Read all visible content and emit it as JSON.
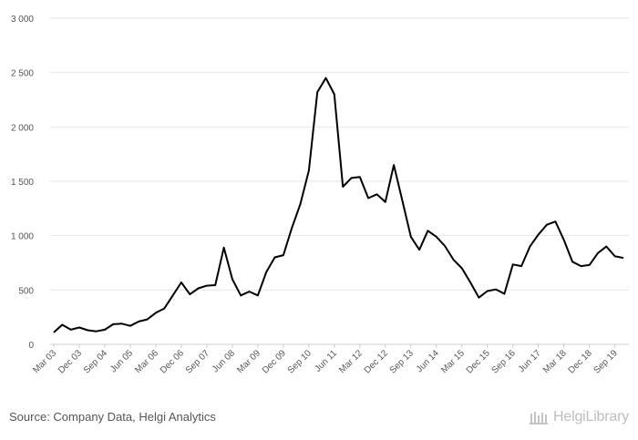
{
  "chart_data": {
    "type": "line",
    "title": "",
    "xlabel": "",
    "ylabel": "",
    "ylim": [
      0,
      3000
    ],
    "grid": "horizontal",
    "y_ticks": [
      "0",
      "500",
      "1 000",
      "1 500",
      "2 000",
      "2 500",
      "3 000"
    ],
    "y_tick_values": [
      0,
      500,
      1000,
      1500,
      2000,
      2500,
      3000
    ],
    "x_tick_labels": [
      "Mar 03",
      "Dec 03",
      "Sep 04",
      "Jun 05",
      "Mar 06",
      "Dec 06",
      "Sep 07",
      "Jun 08",
      "Mar 09",
      "Dec 09",
      "Sep 10",
      "Jun 11",
      "Mar 12",
      "Dec 12",
      "Sep 13",
      "Jun 14",
      "Mar 15",
      "Dec 15",
      "Sep 16",
      "Jun 17",
      "Mar 18",
      "Dec 18",
      "Sep 19"
    ],
    "series": [
      {
        "color": "#000000",
        "x": [
          "Mar 03",
          "Jun 03",
          "Sep 03",
          "Dec 03",
          "Mar 04",
          "Jun 04",
          "Sep 04",
          "Dec 04",
          "Mar 05",
          "Jun 05",
          "Sep 05",
          "Dec 05",
          "Mar 06",
          "Jun 06",
          "Sep 06",
          "Dec 06",
          "Mar 07",
          "Jun 07",
          "Sep 07",
          "Dec 07",
          "Mar 08",
          "Jun 08",
          "Sep 08",
          "Dec 08",
          "Mar 09",
          "Jun 09",
          "Sep 09",
          "Dec 09",
          "Mar 10",
          "Jun 10",
          "Sep 10",
          "Dec 10",
          "Mar 11",
          "Jun 11",
          "Sep 11",
          "Dec 11",
          "Mar 12",
          "Jun 12",
          "Sep 12",
          "Dec 12",
          "Mar 13",
          "Jun 13",
          "Sep 13",
          "Dec 13",
          "Mar 14",
          "Jun 14",
          "Sep 14",
          "Dec 14",
          "Mar 15",
          "Jun 15",
          "Sep 15",
          "Dec 15",
          "Mar 16",
          "Jun 16",
          "Sep 16",
          "Dec 16",
          "Mar 17",
          "Jun 17",
          "Sep 17",
          "Dec 17",
          "Mar 18",
          "Jun 18",
          "Sep 18",
          "Dec 18",
          "Mar 19",
          "Jun 19",
          "Sep 19",
          "Dec 19"
        ],
        "values": [
          110,
          180,
          135,
          155,
          130,
          120,
          135,
          185,
          190,
          170,
          210,
          230,
          290,
          330,
          450,
          570,
          460,
          515,
          540,
          545,
          890,
          600,
          450,
          485,
          450,
          665,
          800,
          820,
          1070,
          1290,
          1600,
          2320,
          2450,
          2300,
          1450,
          1530,
          1540,
          1345,
          1380,
          1310,
          1650,
          1320,
          990,
          870,
          1045,
          990,
          905,
          780,
          700,
          570,
          430,
          490,
          505,
          465,
          735,
          720,
          900,
          1010,
          1100,
          1130,
          960,
          760,
          720,
          730,
          840,
          900,
          810,
          795
        ]
      }
    ]
  },
  "footer": {
    "source": "Source: Company Data, Helgi Analytics",
    "logo_text": "HelgiLibrary"
  }
}
